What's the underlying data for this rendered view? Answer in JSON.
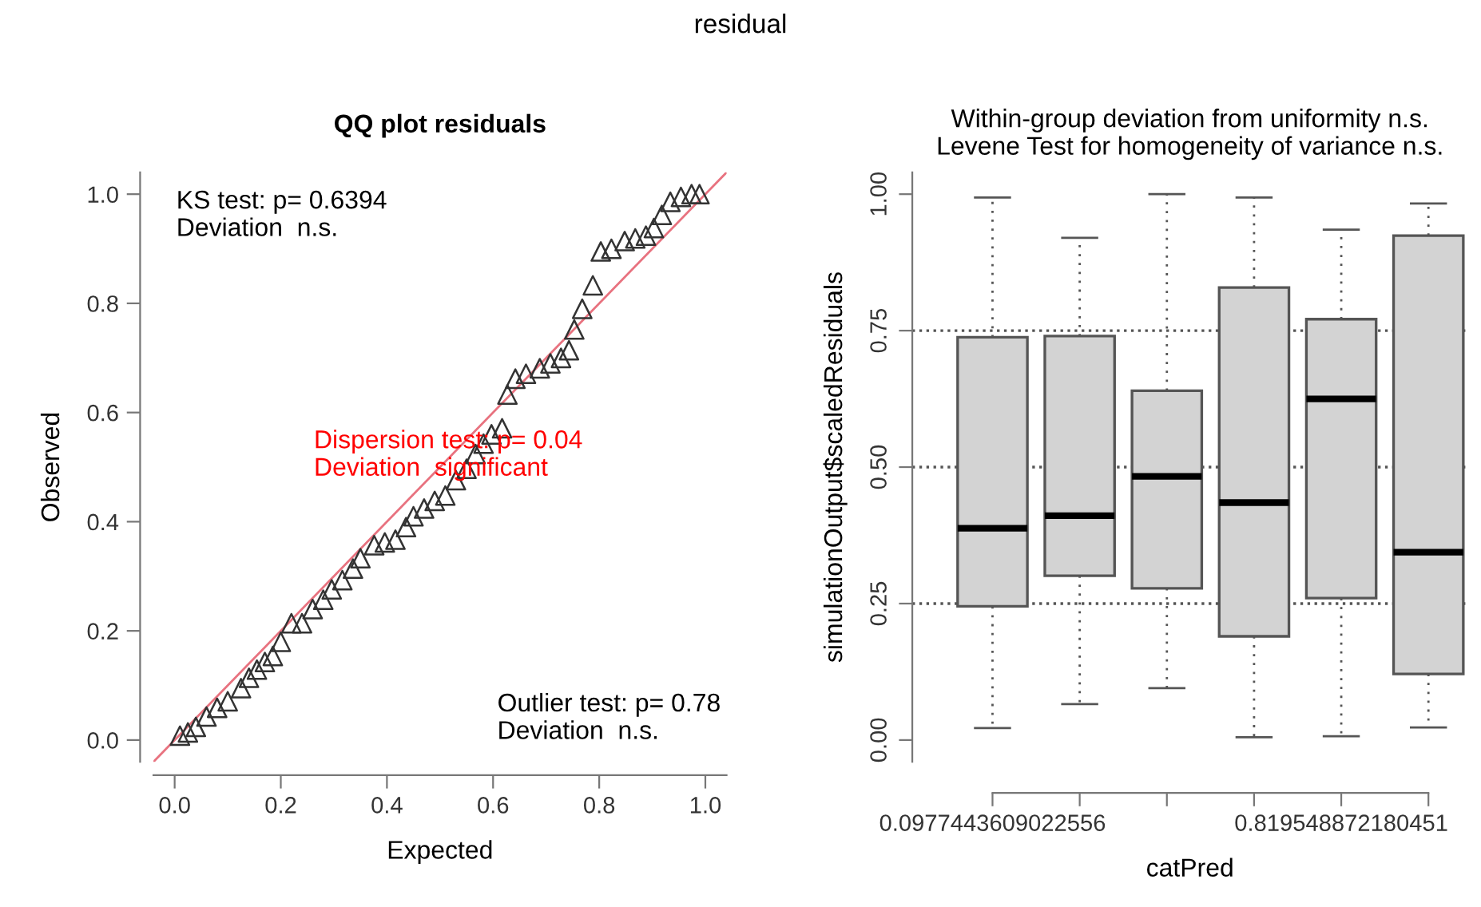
{
  "chart_data": [
    {
      "type": "scatter",
      "title": "QQ plot residuals",
      "xlabel": "Expected",
      "ylabel": "Observed",
      "grid": false,
      "legend": false,
      "xlim": [
        -0.04,
        1.04
      ],
      "ylim": [
        -0.04,
        1.04
      ],
      "xticks": [
        {
          "value": 0,
          "label": "0.0"
        },
        {
          "value": 0.2,
          "label": "0.2"
        },
        {
          "value": 0.4,
          "label": "0.4"
        },
        {
          "value": 0.6,
          "label": "0.6"
        },
        {
          "value": 0.8,
          "label": "0.8"
        },
        {
          "value": 1,
          "label": "1.0"
        }
      ],
      "yticks": [
        {
          "value": 0,
          "label": "0.0"
        },
        {
          "value": 0.2,
          "label": "0.2"
        },
        {
          "value": 0.4,
          "label": "0.4"
        },
        {
          "value": 0.6,
          "label": "0.6"
        },
        {
          "value": 0.8,
          "label": "0.8"
        },
        {
          "value": 1,
          "label": "1.0"
        }
      ],
      "annotations": [
        "residual",
        "KS test: p= 0.6394\nDeviation  n.s.",
        "Dispersion test: p= 0.04\nDeviation  significant",
        "Outlier test: p= 0.78\nDeviation  n.s."
      ],
      "series": [
        {
          "type": "scatter",
          "color": "#333333",
          "marker": "triangle",
          "x": [
            0.01,
            0.025,
            0.04,
            0.06,
            0.08,
            0.1,
            0.125,
            0.14,
            0.155,
            0.17,
            0.185,
            0.2,
            0.22,
            0.24,
            0.26,
            0.28,
            0.296,
            0.316,
            0.336,
            0.35,
            0.376,
            0.396,
            0.416,
            0.436,
            0.45,
            0.47,
            0.49,
            0.51,
            0.53,
            0.55,
            0.567,
            0.582,
            0.597,
            0.617,
            0.627,
            0.642,
            0.662,
            0.688,
            0.708,
            0.728,
            0.743,
            0.753,
            0.768,
            0.788,
            0.803,
            0.823,
            0.848,
            0.868,
            0.888,
            0.903,
            0.918,
            0.934,
            0.954,
            0.974,
            0.989
          ],
          "values": [
            0.008,
            0.014,
            0.024,
            0.043,
            0.059,
            0.071,
            0.095,
            0.114,
            0.129,
            0.143,
            0.154,
            0.18,
            0.214,
            0.214,
            0.24,
            0.257,
            0.276,
            0.293,
            0.314,
            0.333,
            0.357,
            0.362,
            0.367,
            0.39,
            0.41,
            0.424,
            0.438,
            0.448,
            0.476,
            0.497,
            0.524,
            0.543,
            0.56,
            0.571,
            0.633,
            0.662,
            0.671,
            0.681,
            0.69,
            0.7,
            0.714,
            0.752,
            0.79,
            0.833,
            0.895,
            0.9,
            0.914,
            0.919,
            0.924,
            0.938,
            0.962,
            0.986,
            0.995,
            1.0,
            1.0
          ]
        },
        {
          "type": "line",
          "color": "#e8727f",
          "marker": "none",
          "x": [
            -0.04,
            1.04
          ],
          "values": [
            -0.04,
            1.04
          ]
        }
      ]
    },
    {
      "type": "box",
      "title": "Within-group deviation from uniformity n.s.\nLevene Test for homogeneity of variance n.s.",
      "xlabel": "catPred",
      "ylabel": "simulationOutput$scaledResiduals",
      "grid": false,
      "legend": false,
      "categories": [
        "0.0977443609022556",
        null,
        null,
        null,
        "0.819548872180451",
        null
      ],
      "ylim": [
        -0.04,
        1.04
      ],
      "yticks": [
        {
          "value": 0,
          "label": "0.00"
        },
        {
          "value": 0.25,
          "label": "0.25"
        },
        {
          "value": 0.5,
          "label": "0.50"
        },
        {
          "value": 0.75,
          "label": "0.75"
        },
        {
          "value": 1,
          "label": "1.00"
        }
      ],
      "ref_lines": [
        {
          "axis": "y",
          "value": 0.25,
          "line_style": "dotted",
          "color": "#555555"
        },
        {
          "axis": "y",
          "value": 0.5,
          "line_style": "dotted",
          "color": "#555555"
        },
        {
          "axis": "y",
          "value": 0.75,
          "line_style": "dotted",
          "color": "#555555"
        }
      ],
      "series": [
        {
          "color": "#d3d3d3",
          "boxes": [
            {
              "low": 0.022,
              "q1": 0.245,
              "median": 0.388,
              "q3": 0.738,
              "high": 0.994
            },
            {
              "low": 0.066,
              "q1": 0.301,
              "median": 0.411,
              "q3": 0.74,
              "high": 0.92
            },
            {
              "low": 0.095,
              "q1": 0.278,
              "median": 0.483,
              "q3": 0.64,
              "high": 1.0
            },
            {
              "low": 0.005,
              "q1": 0.19,
              "median": 0.435,
              "q3": 0.829,
              "high": 0.994
            },
            {
              "low": 0.007,
              "q1": 0.26,
              "median": 0.625,
              "q3": 0.771,
              "high": 0.935
            },
            {
              "low": 0.023,
              "q1": 0.121,
              "median": 0.344,
              "q3": 0.924,
              "high": 0.983
            }
          ]
        }
      ]
    }
  ]
}
